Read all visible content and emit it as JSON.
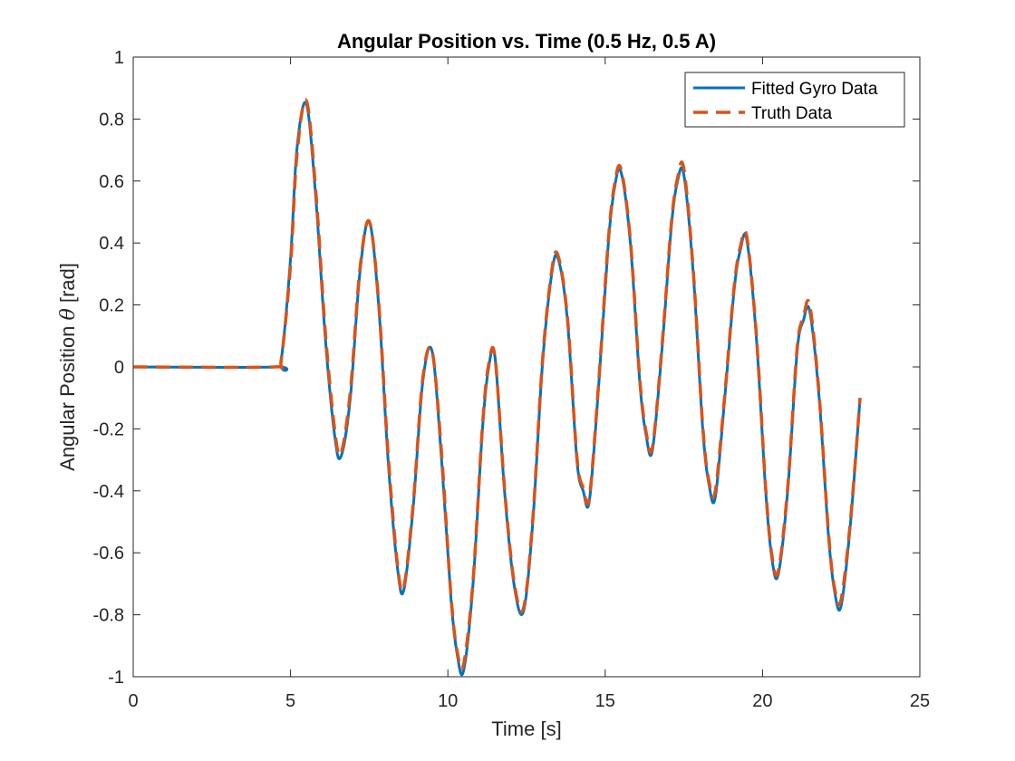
{
  "chart_data": {
    "type": "line",
    "title": "Angular Position vs. Time (0.5 Hz, 0.5 A)",
    "xlabel": "Time [s]",
    "ylabel_prefix": "Angular Position ",
    "ylabel_symbol": "θ",
    "ylabel_suffix": " [rad]",
    "xlim": [
      0,
      25
    ],
    "ylim": [
      -1,
      1
    ],
    "xticks": [
      0,
      5,
      10,
      15,
      20,
      25
    ],
    "yticks": [
      -1,
      -0.8,
      -0.6,
      -0.4,
      -0.2,
      0,
      0.2,
      0.4,
      0.6,
      0.8,
      1
    ],
    "legend_position": "top-right",
    "grid": false,
    "series": [
      {
        "name": "Fitted Gyro Data",
        "color": "#0072BD",
        "style": "solid",
        "points": [
          [
            0,
            0
          ],
          [
            4.5,
            0
          ],
          [
            4.7,
            0.02
          ],
          [
            5.0,
            0.35
          ],
          [
            5.2,
            0.7
          ],
          [
            5.5,
            0.85
          ],
          [
            5.8,
            0.55
          ],
          [
            6.1,
            0.1
          ],
          [
            6.4,
            -0.22
          ],
          [
            6.6,
            -0.29
          ],
          [
            6.9,
            -0.1
          ],
          [
            7.2,
            0.3
          ],
          [
            7.5,
            0.47
          ],
          [
            7.8,
            0.2
          ],
          [
            8.1,
            -0.3
          ],
          [
            8.4,
            -0.65
          ],
          [
            8.6,
            -0.72
          ],
          [
            8.9,
            -0.45
          ],
          [
            9.2,
            -0.05
          ],
          [
            9.5,
            0.05
          ],
          [
            9.8,
            -0.3
          ],
          [
            10.1,
            -0.75
          ],
          [
            10.3,
            -0.93
          ],
          [
            10.5,
            -0.98
          ],
          [
            10.8,
            -0.7
          ],
          [
            11.1,
            -0.2
          ],
          [
            11.3,
            0.0
          ],
          [
            11.5,
            0.03
          ],
          [
            11.8,
            -0.4
          ],
          [
            12.1,
            -0.7
          ],
          [
            12.4,
            -0.79
          ],
          [
            12.7,
            -0.5
          ],
          [
            13.0,
            0.0
          ],
          [
            13.3,
            0.3
          ],
          [
            13.5,
            0.35
          ],
          [
            13.8,
            0.15
          ],
          [
            14.1,
            -0.3
          ],
          [
            14.3,
            -0.4
          ],
          [
            14.5,
            -0.43
          ],
          [
            14.8,
            -0.05
          ],
          [
            15.1,
            0.4
          ],
          [
            15.3,
            0.58
          ],
          [
            15.5,
            0.63
          ],
          [
            15.8,
            0.4
          ],
          [
            16.1,
            -0.05
          ],
          [
            16.3,
            -0.22
          ],
          [
            16.5,
            -0.27
          ],
          [
            16.8,
            0.05
          ],
          [
            17.1,
            0.45
          ],
          [
            17.3,
            0.6
          ],
          [
            17.5,
            0.62
          ],
          [
            17.8,
            0.3
          ],
          [
            18.1,
            -0.2
          ],
          [
            18.3,
            -0.38
          ],
          [
            18.5,
            -0.42
          ],
          [
            18.8,
            -0.1
          ],
          [
            19.1,
            0.25
          ],
          [
            19.3,
            0.38
          ],
          [
            19.5,
            0.41
          ],
          [
            19.8,
            0.1
          ],
          [
            20.1,
            -0.4
          ],
          [
            20.3,
            -0.62
          ],
          [
            20.5,
            -0.67
          ],
          [
            20.8,
            -0.4
          ],
          [
            21.1,
            0.05
          ],
          [
            21.3,
            0.15
          ],
          [
            21.5,
            0.18
          ],
          [
            21.8,
            -0.1
          ],
          [
            22.1,
            -0.55
          ],
          [
            22.3,
            -0.73
          ],
          [
            22.5,
            -0.77
          ],
          [
            22.8,
            -0.5
          ],
          [
            23.1,
            -0.1
          ]
        ]
      },
      {
        "name": "Truth Data",
        "color": "#D95319",
        "style": "dashed",
        "points": [
          [
            0,
            0
          ],
          [
            4.5,
            0
          ],
          [
            4.7,
            0.02
          ],
          [
            5.0,
            0.33
          ],
          [
            5.2,
            0.68
          ],
          [
            5.5,
            0.86
          ],
          [
            5.8,
            0.57
          ],
          [
            6.1,
            0.12
          ],
          [
            6.4,
            -0.2
          ],
          [
            6.6,
            -0.28
          ],
          [
            6.9,
            -0.08
          ],
          [
            7.2,
            0.31
          ],
          [
            7.5,
            0.47
          ],
          [
            7.8,
            0.21
          ],
          [
            8.1,
            -0.28
          ],
          [
            8.4,
            -0.64
          ],
          [
            8.6,
            -0.71
          ],
          [
            8.9,
            -0.44
          ],
          [
            9.2,
            -0.04
          ],
          [
            9.5,
            0.05
          ],
          [
            9.8,
            -0.28
          ],
          [
            10.1,
            -0.74
          ],
          [
            10.3,
            -0.92
          ],
          [
            10.5,
            -0.96
          ],
          [
            10.8,
            -0.69
          ],
          [
            11.1,
            -0.19
          ],
          [
            11.3,
            0.01
          ],
          [
            11.5,
            0.03
          ],
          [
            11.8,
            -0.39
          ],
          [
            12.1,
            -0.69
          ],
          [
            12.4,
            -0.78
          ],
          [
            12.7,
            -0.49
          ],
          [
            13.0,
            0.01
          ],
          [
            13.3,
            0.31
          ],
          [
            13.5,
            0.36
          ],
          [
            13.8,
            0.16
          ],
          [
            14.1,
            -0.29
          ],
          [
            14.3,
            -0.39
          ],
          [
            14.5,
            -0.42
          ],
          [
            14.8,
            -0.04
          ],
          [
            15.1,
            0.41
          ],
          [
            15.3,
            0.59
          ],
          [
            15.5,
            0.64
          ],
          [
            15.8,
            0.41
          ],
          [
            16.1,
            -0.04
          ],
          [
            16.3,
            -0.21
          ],
          [
            16.5,
            -0.26
          ],
          [
            16.8,
            0.06
          ],
          [
            17.1,
            0.46
          ],
          [
            17.3,
            0.61
          ],
          [
            17.5,
            0.64
          ],
          [
            17.8,
            0.31
          ],
          [
            18.1,
            -0.19
          ],
          [
            18.3,
            -0.37
          ],
          [
            18.5,
            -0.4
          ],
          [
            18.8,
            -0.09
          ],
          [
            19.1,
            0.26
          ],
          [
            19.3,
            0.39
          ],
          [
            19.5,
            0.42
          ],
          [
            19.8,
            0.11
          ],
          [
            20.1,
            -0.39
          ],
          [
            20.3,
            -0.61
          ],
          [
            20.5,
            -0.66
          ],
          [
            20.8,
            -0.39
          ],
          [
            21.1,
            0.06
          ],
          [
            21.3,
            0.16
          ],
          [
            21.5,
            0.2
          ],
          [
            21.8,
            -0.09
          ],
          [
            22.1,
            -0.54
          ],
          [
            22.3,
            -0.72
          ],
          [
            22.5,
            -0.75
          ],
          [
            22.8,
            -0.49
          ],
          [
            23.1,
            -0.1
          ]
        ]
      }
    ]
  }
}
